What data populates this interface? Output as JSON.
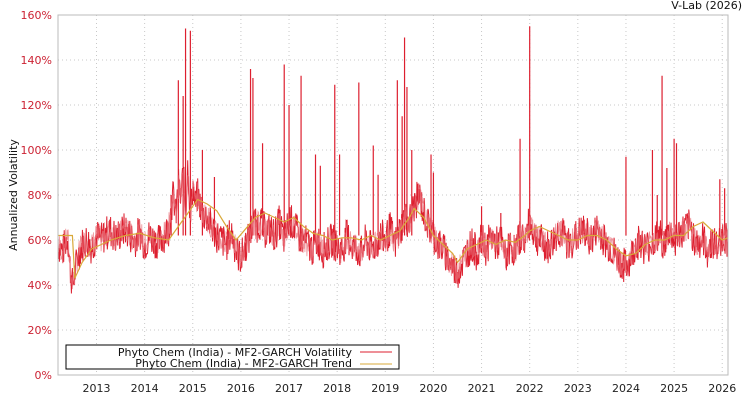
{
  "header": {
    "credit": "V-Lab (2026)"
  },
  "colors": {
    "volatility": "#dd1f2f",
    "trend": "#d9a93a",
    "grid": "#c8c8c8",
    "axis": "#bbbbbb",
    "ytick": "#cc2233"
  },
  "legend": {
    "items": [
      {
        "label": "Phyto Chem (India) - MF2-GARCH Volatility",
        "color": "#dd1f2f"
      },
      {
        "label": "Phyto Chem (India) - MF2-GARCH Trend",
        "color": "#d9a93a"
      }
    ]
  },
  "chart_data": {
    "type": "line",
    "title": "",
    "xlabel": "",
    "ylabel": "Annualized Volatility",
    "ylim": [
      0,
      160
    ],
    "xlim": [
      2012.2,
      2026.12
    ],
    "yticks": [
      "0%",
      "20%",
      "40%",
      "60%",
      "80%",
      "100%",
      "120%",
      "140%",
      "160%"
    ],
    "ytick_values": [
      0,
      20,
      40,
      60,
      80,
      100,
      120,
      140,
      160
    ],
    "xticks": [
      "2013",
      "2014",
      "2015",
      "2016",
      "2017",
      "2018",
      "2019",
      "2020",
      "2021",
      "2022",
      "2023",
      "2024",
      "2025",
      "2026"
    ],
    "xtick_values": [
      2013,
      2014,
      2015,
      2016,
      2017,
      2018,
      2019,
      2020,
      2021,
      2022,
      2023,
      2024,
      2025,
      2026
    ],
    "grid": true,
    "legend_position": "lower left",
    "series": [
      {
        "name": "Phyto Chem (India) - MF2-GARCH Volatility",
        "x": [
          2012.2,
          2012.3,
          2012.4,
          2012.45,
          2012.5,
          2012.55,
          2012.6,
          2012.7,
          2012.8,
          2012.9,
          2013.0,
          2013.1,
          2013.2,
          2013.3,
          2013.4,
          2013.5,
          2013.6,
          2013.7,
          2013.8,
          2013.9,
          2014.0,
          2014.1,
          2014.2,
          2014.3,
          2014.4,
          2014.5,
          2014.55,
          2014.6,
          2014.65,
          2014.7,
          2014.75,
          2014.8,
          2014.85,
          2014.9,
          2014.95,
          2015.0,
          2015.05,
          2015.1,
          2015.2,
          2015.3,
          2015.4,
          2015.5,
          2015.6,
          2015.7,
          2015.8,
          2015.9,
          2016.0,
          2016.1,
          2016.2,
          2016.25,
          2016.3,
          2016.4,
          2016.5,
          2016.6,
          2016.7,
          2016.8,
          2016.9,
          2016.95,
          2017.0,
          2017.1,
          2017.2,
          2017.3,
          2017.4,
          2017.5,
          2017.6,
          2017.7,
          2017.8,
          2017.9,
          2018.0,
          2018.1,
          2018.2,
          2018.3,
          2018.4,
          2018.5,
          2018.6,
          2018.7,
          2018.8,
          2018.9,
          2019.0,
          2019.1,
          2019.2,
          2019.3,
          2019.4,
          2019.5,
          2019.6,
          2019.7,
          2019.8,
          2019.9,
          2020.0,
          2020.1,
          2020.2,
          2020.3,
          2020.4,
          2020.5,
          2020.6,
          2020.7,
          2020.8,
          2020.9,
          2021.0,
          2021.1,
          2021.2,
          2021.3,
          2021.4,
          2021.5,
          2021.6,
          2021.7,
          2021.8,
          2021.9,
          2022.0,
          2022.1,
          2022.2,
          2022.3,
          2022.4,
          2022.5,
          2022.6,
          2022.7,
          2022.8,
          2022.9,
          2023.0,
          2023.1,
          2023.2,
          2023.3,
          2023.4,
          2023.5,
          2023.6,
          2023.7,
          2023.8,
          2023.9,
          2024.0,
          2024.1,
          2024.2,
          2024.3,
          2024.4,
          2024.5,
          2024.6,
          2024.7,
          2024.8,
          2024.9,
          2025.0,
          2025.1,
          2025.2,
          2025.3,
          2025.4,
          2025.5,
          2025.6,
          2025.7,
          2025.8,
          2025.9,
          2026.0,
          2026.1
        ],
        "values": [
          58,
          55,
          62,
          48,
          40,
          45,
          52,
          58,
          60,
          57,
          62,
          60,
          63,
          64,
          61,
          63,
          65,
          62,
          60,
          64,
          58,
          62,
          60,
          59,
          62,
          65,
          75,
          80,
          70,
          85,
          78,
          90,
          72,
          95,
          68,
          85,
          75,
          80,
          72,
          70,
          65,
          62,
          60,
          58,
          64,
          55,
          52,
          58,
          62,
          70,
          66,
          68,
          64,
          65,
          62,
          68,
          60,
          64,
          70,
          66,
          62,
          60,
          58,
          56,
          60,
          55,
          58,
          60,
          57,
          55,
          62,
          58,
          56,
          54,
          60,
          56,
          58,
          62,
          60,
          65,
          58,
          64,
          70,
          68,
          75,
          80,
          72,
          66,
          62,
          58,
          56,
          52,
          48,
          46,
          50,
          55,
          58,
          54,
          60,
          56,
          62,
          58,
          60,
          52,
          58,
          55,
          62,
          60,
          68,
          62,
          60,
          58,
          56,
          60,
          64,
          62,
          58,
          60,
          62,
          64,
          62,
          60,
          65,
          62,
          58,
          56,
          52,
          50,
          48,
          52,
          58,
          60,
          56,
          58,
          60,
          62,
          58,
          64,
          60,
          62,
          64,
          66,
          62,
          58,
          60,
          55,
          60,
          56,
          62,
          60
        ]
      },
      {
        "name": "Phyto Chem (India) - MF2-GARCH Trend",
        "x": [
          2012.2,
          2012.4,
          2012.5,
          2012.55,
          2012.7,
          2012.9,
          2013.1,
          2013.3,
          2013.6,
          2013.9,
          2014.2,
          2014.5,
          2014.7,
          2014.9,
          2015.1,
          2015.3,
          2015.5,
          2015.7,
          2015.9,
          2016.1,
          2016.3,
          2016.5,
          2016.7,
          2016.9,
          2017.1,
          2017.3,
          2017.5,
          2017.7,
          2017.9,
          2018.1,
          2018.3,
          2018.5,
          2018.7,
          2018.9,
          2019.1,
          2019.3,
          2019.5,
          2019.6,
          2019.8,
          2020.0,
          2020.2,
          2020.4,
          2020.5,
          2020.7,
          2020.9,
          2021.1,
          2021.3,
          2021.5,
          2021.7,
          2021.9,
          2022.0,
          2022.2,
          2022.4,
          2022.6,
          2022.8,
          2023.0,
          2023.2,
          2023.4,
          2023.6,
          2023.8,
          2024.0,
          2024.2,
          2024.4,
          2024.6,
          2024.8,
          2025.0,
          2025.2,
          2025.4,
          2025.6,
          2025.8,
          2026.0,
          2026.12
        ],
        "values": [
          62,
          62,
          62,
          43,
          50,
          56,
          58,
          60,
          62,
          63,
          61,
          60,
          66,
          72,
          78,
          76,
          73,
          66,
          60,
          65,
          70,
          72,
          70,
          68,
          70,
          66,
          63,
          62,
          60,
          61,
          61,
          60,
          62,
          60,
          62,
          64,
          70,
          74,
          70,
          62,
          58,
          54,
          50,
          56,
          58,
          60,
          58,
          60,
          59,
          62,
          64,
          66,
          64,
          62,
          60,
          60,
          62,
          62,
          60,
          56,
          53,
          54,
          58,
          60,
          60,
          62,
          62,
          66,
          68,
          64,
          60,
          61
        ]
      }
    ],
    "spikes": {
      "x": [
        2014.55,
        2014.7,
        2014.8,
        2014.85,
        2014.95,
        2015.2,
        2015.45,
        2016.2,
        2016.25,
        2016.45,
        2016.9,
        2017.0,
        2017.25,
        2017.55,
        2017.65,
        2017.95,
        2018.05,
        2018.45,
        2018.75,
        2018.85,
        2019.25,
        2019.35,
        2019.4,
        2019.45,
        2019.55,
        2019.95,
        2020.0,
        2022.0,
        2021.0,
        2021.4,
        2021.8,
        2024.0,
        2024.55,
        2024.65,
        2024.75,
        2024.85,
        2025.0,
        2025.05,
        2025.95,
        2026.05
      ],
      "values": [
        80,
        131,
        124,
        154,
        153,
        100,
        88,
        136,
        132,
        103,
        138,
        120,
        133,
        98,
        93,
        129,
        98,
        130,
        102,
        89,
        131,
        115,
        150,
        128,
        100,
        98,
        90,
        155,
        75,
        72,
        105,
        97,
        100,
        80,
        133,
        92,
        105,
        103,
        87,
        83
      ]
    }
  }
}
